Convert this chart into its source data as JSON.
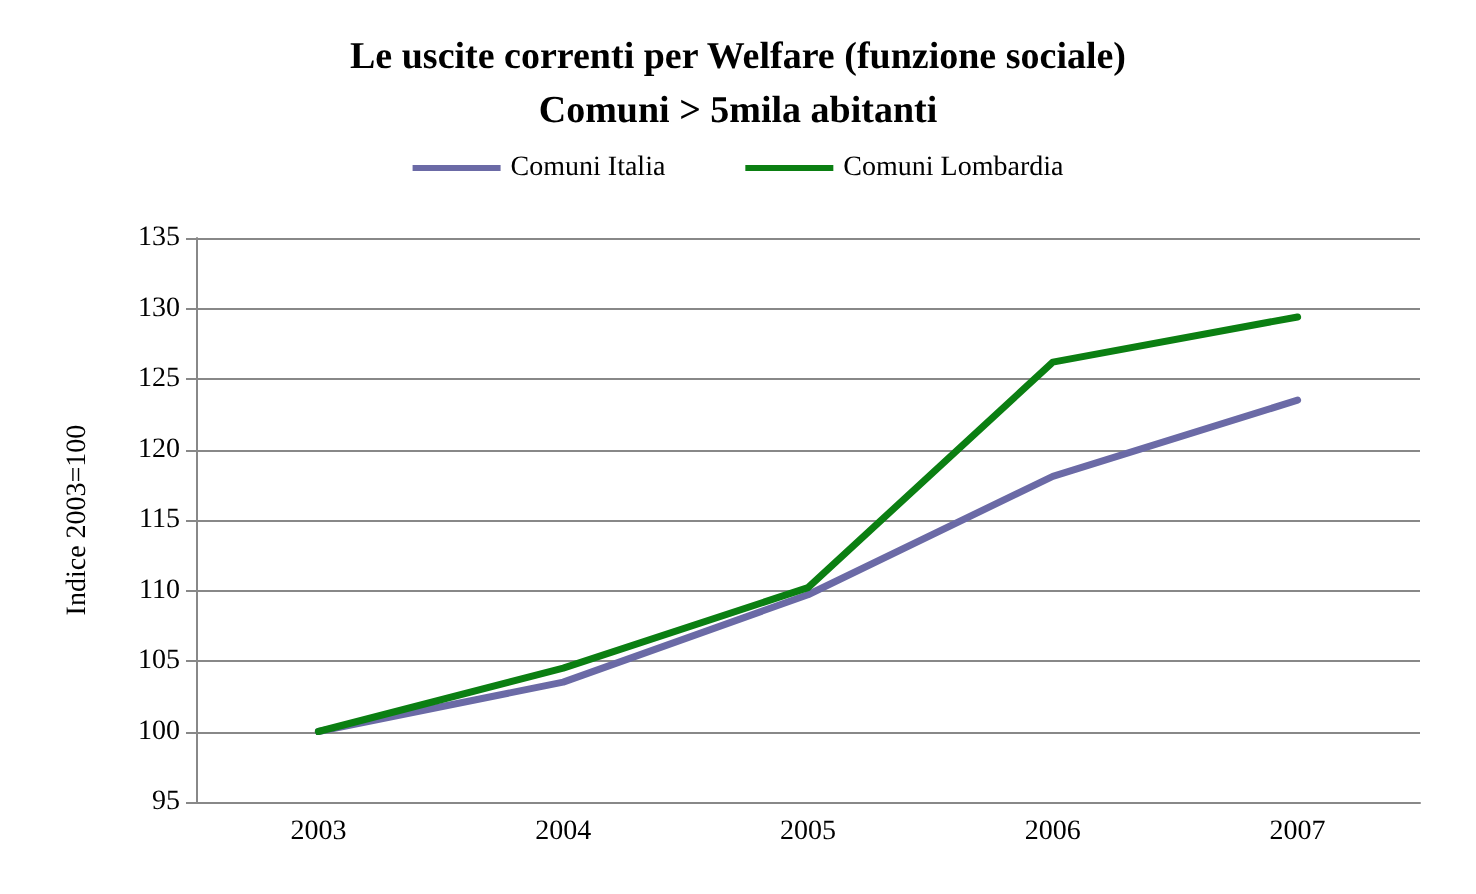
{
  "chart_data": {
    "type": "line",
    "title": "Le uscite correnti per Welfare (funzione sociale)",
    "subtitle": "Comuni > 5mila abitanti",
    "ylabel": "Indice 2003=100",
    "categories": [
      "2003",
      "2004",
      "2005",
      "2006",
      "2007"
    ],
    "series": [
      {
        "name": "Comuni Italia",
        "color": "#6b6aa6",
        "values": [
          100,
          103.5,
          109.7,
          118.1,
          123.5
        ]
      },
      {
        "name": "Comuni Lombardia",
        "color": "#0b7f12",
        "values": [
          100,
          104.5,
          110.2,
          126.2,
          129.4
        ]
      }
    ],
    "ylim": [
      95,
      135
    ],
    "yticks": [
      95,
      100,
      105,
      110,
      115,
      120,
      125,
      130,
      135
    ],
    "grid": "y",
    "legend": "top",
    "marker": "none",
    "line_style": "solid"
  }
}
